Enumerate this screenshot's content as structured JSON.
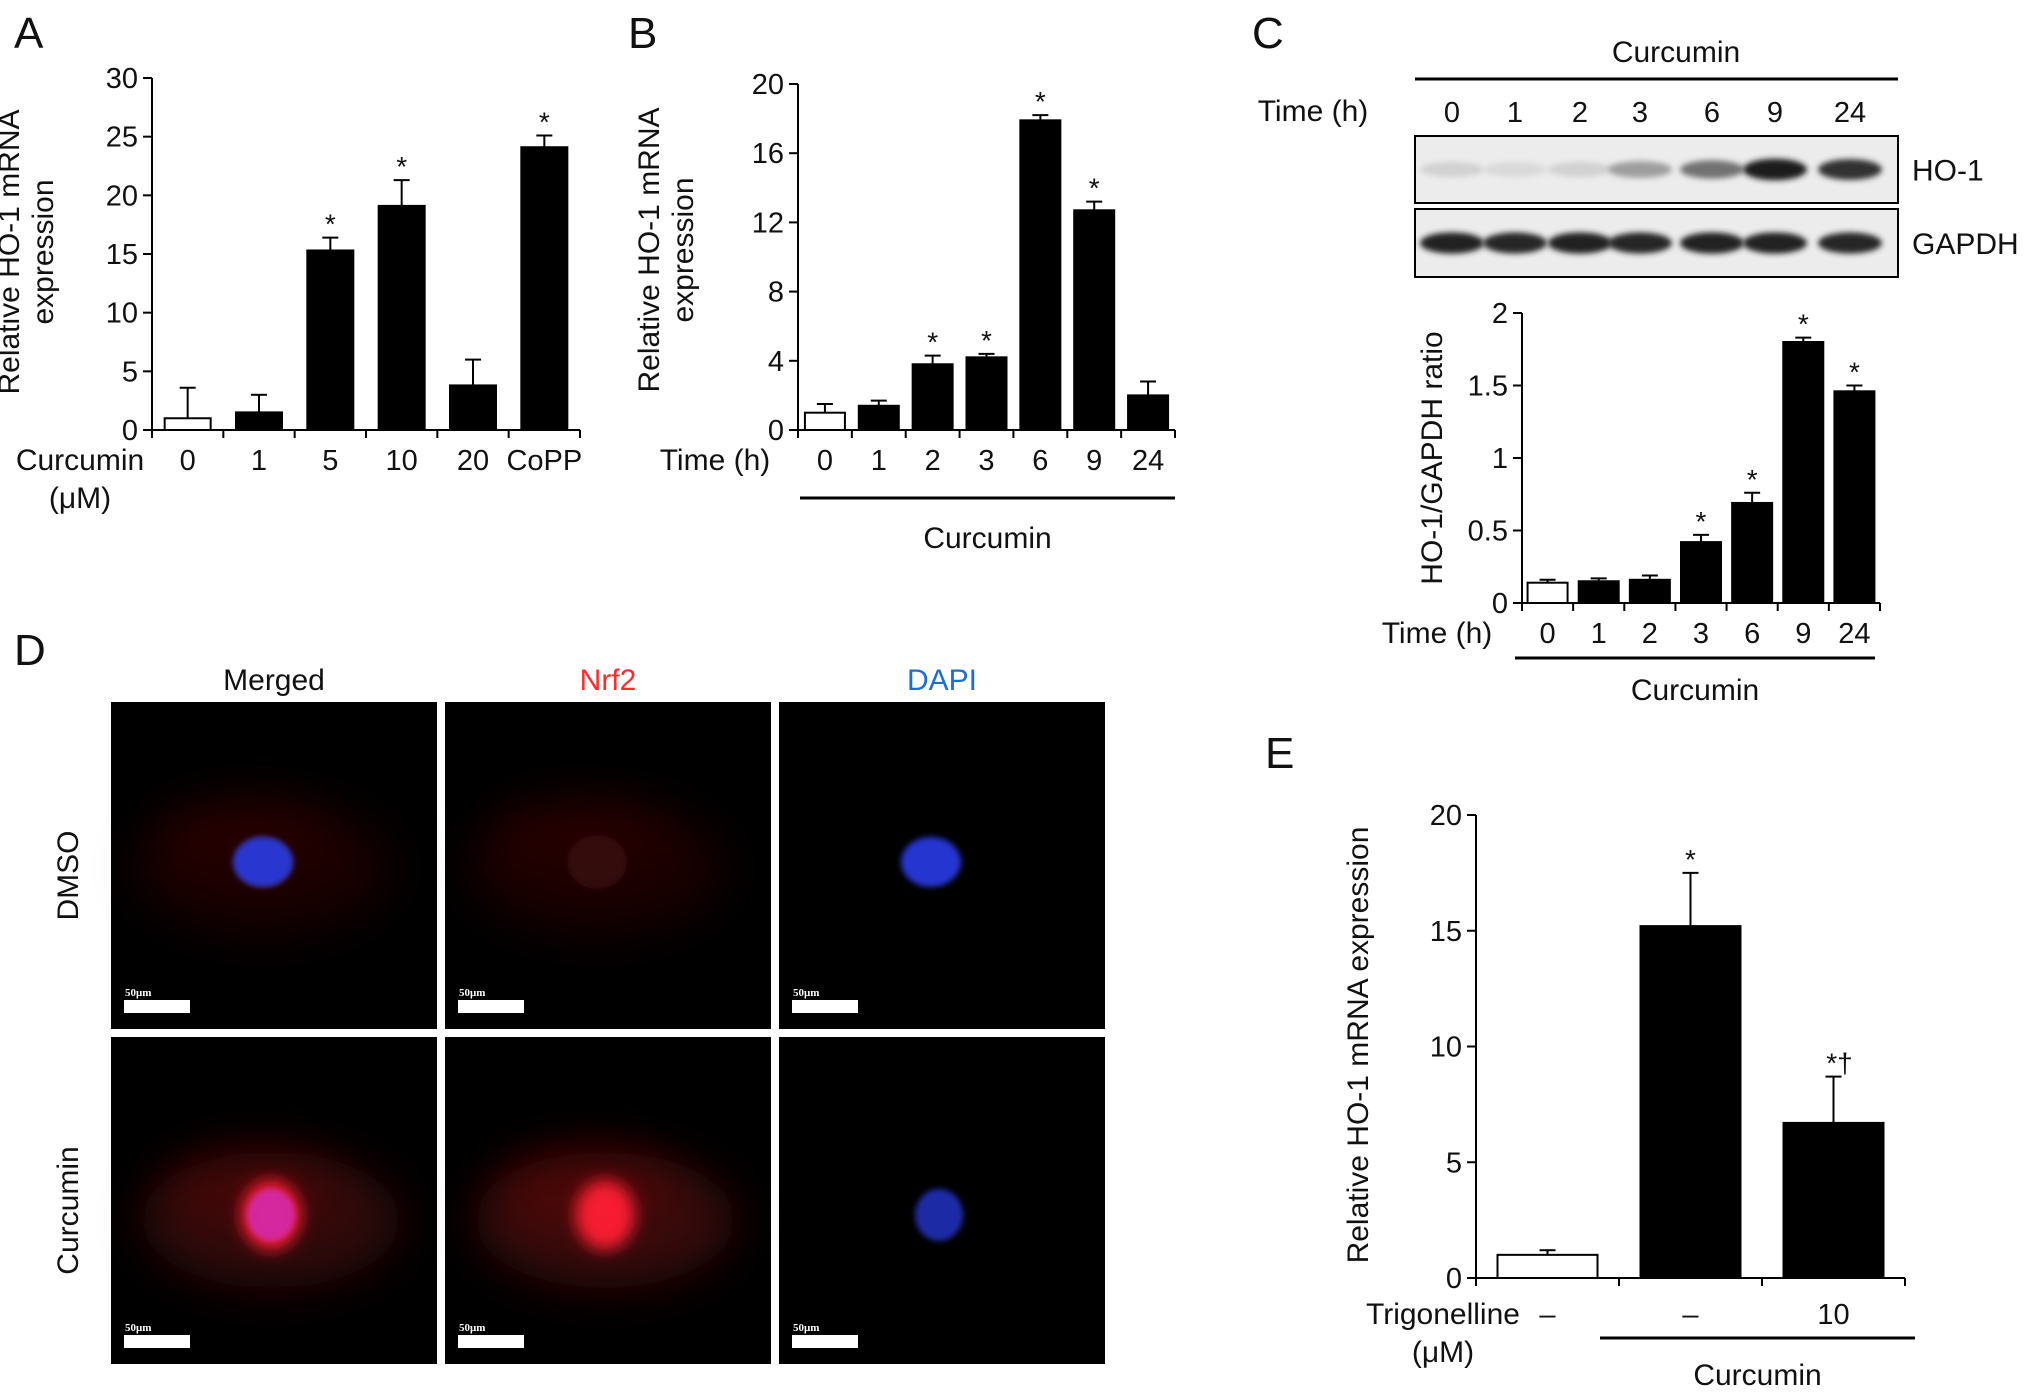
{
  "panels": {
    "A": "A",
    "B": "B",
    "C": "C",
    "D": "D",
    "E": "E"
  },
  "colors": {
    "control": "#ffffff",
    "treated": "#000000",
    "red_channel": "#ff2a2a",
    "blue_channel": "#1a6fd6",
    "scale_bar": "#ffffff"
  },
  "chart_data": [
    {
      "panel": "A",
      "type": "bar",
      "ylabel": "Relative HO-1 mRNA expression",
      "xlabel": "Curcumin (μM)",
      "xlabel_lines": [
        "Curcumin",
        "(μM)"
      ],
      "ylim": [
        0,
        30
      ],
      "yticks": [
        0,
        5,
        10,
        15,
        20,
        25,
        30
      ],
      "categories": [
        "0",
        "1",
        "5",
        "10",
        "20",
        "CoPP"
      ],
      "values": [
        1.0,
        1.5,
        15.3,
        19.1,
        3.8,
        24.1
      ],
      "errors": [
        2.6,
        1.5,
        1.1,
        2.2,
        2.2,
        1.0
      ],
      "significance": [
        "",
        "",
        "*",
        "*",
        "",
        "*"
      ],
      "fills": [
        "white",
        "black",
        "black",
        "black",
        "black",
        "black"
      ]
    },
    {
      "panel": "B",
      "type": "bar",
      "ylabel": "Relative HO-1 mRNA expression",
      "xlabel": "Time (h)",
      "group_label": "Curcumin",
      "ylim": [
        0,
        20
      ],
      "yticks": [
        0,
        4,
        8,
        12,
        16,
        20
      ],
      "categories": [
        "0",
        "1",
        "2",
        "3",
        "6",
        "9",
        "24"
      ],
      "values": [
        1.0,
        1.4,
        3.8,
        4.2,
        17.9,
        12.7,
        2.0
      ],
      "errors": [
        0.5,
        0.3,
        0.5,
        0.2,
        0.3,
        0.5,
        0.8
      ],
      "significance": [
        "",
        "",
        "*",
        "*",
        "*",
        "*",
        ""
      ],
      "fills": [
        "white",
        "black",
        "black",
        "black",
        "black",
        "black",
        "black"
      ]
    },
    {
      "panel": "C",
      "type": "bar",
      "ylabel": "HO-1/GAPDH ratio",
      "xlabel": "Time (h)",
      "group_label": "Curcumin",
      "ylim": [
        0,
        2
      ],
      "yticks": [
        "0",
        "0.5",
        "1",
        "1.5",
        "2"
      ],
      "ytick_values": [
        0,
        0.5,
        1,
        1.5,
        2
      ],
      "categories": [
        "0",
        "1",
        "2",
        "3",
        "6",
        "9",
        "24"
      ],
      "values": [
        0.14,
        0.15,
        0.16,
        0.42,
        0.69,
        1.8,
        1.46
      ],
      "errors": [
        0.02,
        0.02,
        0.03,
        0.05,
        0.07,
        0.03,
        0.04
      ],
      "significance": [
        "",
        "",
        "",
        "*",
        "*",
        "*",
        "*"
      ],
      "fills": [
        "white",
        "black",
        "black",
        "black",
        "black",
        "black",
        "black"
      ]
    },
    {
      "panel": "E",
      "type": "bar",
      "ylabel": "Relative HO-1 mRNA expression",
      "xlabel": "Trigonelline (μM)",
      "xlabel_lines": [
        "Trigonelline",
        "(μM)"
      ],
      "group_label": "Curcumin",
      "ylim": [
        0,
        20
      ],
      "yticks": [
        0,
        5,
        10,
        15,
        20
      ],
      "categories": [
        "–",
        "–",
        "10"
      ],
      "values": [
        1.0,
        15.2,
        6.7
      ],
      "errors": [
        0.2,
        2.3,
        2.0
      ],
      "significance": [
        "",
        "*",
        "*†"
      ],
      "fills": [
        "white",
        "black",
        "black"
      ]
    }
  ],
  "blot": {
    "treatment_label": "Curcumin",
    "time_label": "Time (h)",
    "lanes": [
      "0",
      "1",
      "2",
      "3",
      "6",
      "9",
      "24"
    ],
    "bands": [
      {
        "name": "HO-1",
        "intensities": [
          0.12,
          0.08,
          0.12,
          0.35,
          0.55,
          0.95,
          0.85
        ]
      },
      {
        "name": "GAPDH",
        "intensities": [
          0.92,
          0.9,
          0.92,
          0.9,
          0.92,
          0.92,
          0.9
        ]
      }
    ]
  },
  "microscopy": {
    "columns": [
      "Merged",
      "Nrf2",
      "DAPI"
    ],
    "rows": [
      "DMSO",
      "Curcumin"
    ],
    "scale_bar_label": "50μm"
  }
}
